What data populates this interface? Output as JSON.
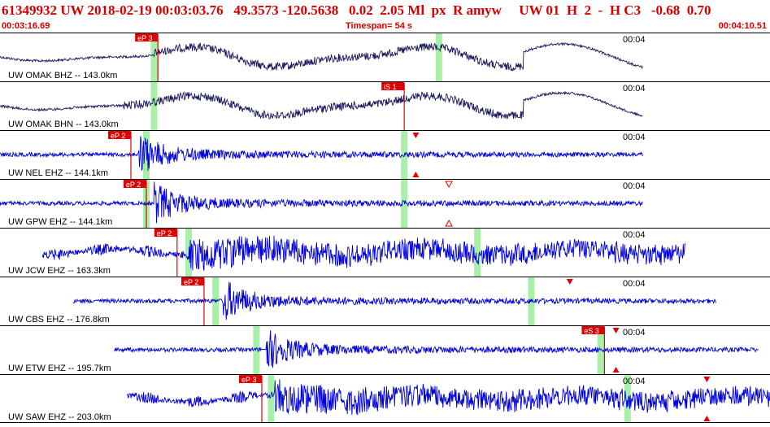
{
  "header": {
    "title": "61349932 UW 2018-02-19 00:03:03.76   49.3573 -120.5638   0.02  2.05 Ml  px  R amyw     UW 01  H  2  -  H C3   -0.68  0.70",
    "time_start": "00:03:16.69",
    "timespan": "Timespan=  54 s",
    "time_end": "00:04:10.51"
  },
  "colors": {
    "header_text": "#d40000",
    "waveform_vertical": "#0000dd",
    "waveform_horizontal": "#1a1a5a",
    "pick_marker": "#e00000",
    "window_highlight": "#a8f0a8",
    "divider": "#000000"
  },
  "traces": [
    {
      "label": "UW OMAK BHZ -- 143.0km",
      "time_label": "00:04",
      "color": "horizontal",
      "picks": [
        {
          "label": "eP 3",
          "t": 0.205
        }
      ],
      "windows": [
        0.2,
        0.57
      ],
      "wave": {
        "start": 0.0,
        "end": 0.835,
        "onset": 0.2,
        "style": "longperiod"
      }
    },
    {
      "label": "UW OMAK BHN -- 143.0km",
      "time_label": "00:04",
      "color": "horizontal",
      "picks": [
        {
          "label": "iS 1",
          "t": 0.525
        }
      ],
      "windows": [
        0.2
      ],
      "wave": {
        "start": 0.0,
        "end": 0.835,
        "onset": 0.16,
        "style": "longperiod"
      }
    },
    {
      "label": "UW NEL EHZ -- 144.1km",
      "time_label": "00:04",
      "color": "vertical",
      "picks": [
        {
          "label": "eP 2",
          "t": 0.17
        }
      ],
      "windows": [
        0.19,
        0.525
      ],
      "wave": {
        "start": 0.0,
        "end": 0.835,
        "onset": 0.18,
        "style": "quake"
      },
      "markers": [
        {
          "t": 0.54,
          "kind": "down"
        },
        {
          "t": 0.54,
          "kind": "up"
        }
      ]
    },
    {
      "label": "UW GPW EHZ -- 144.1km",
      "time_label": "00:04",
      "color": "vertical",
      "picks": [
        {
          "label": "eP 2",
          "t": 0.19
        }
      ],
      "windows": [
        0.19,
        0.525
      ],
      "wave": {
        "start": 0.0,
        "end": 0.835,
        "onset": 0.2,
        "style": "quake"
      },
      "markers": [
        {
          "t": 0.583,
          "kind": "down-open"
        },
        {
          "t": 0.583,
          "kind": "up-open"
        }
      ]
    },
    {
      "label": "UW JCW EHZ -- 163.3km",
      "time_label": "00:04",
      "color": "vertical",
      "picks": [
        {
          "label": "eP 2",
          "t": 0.23
        }
      ],
      "windows": [
        0.245,
        0.62
      ],
      "wave": {
        "start": 0.055,
        "end": 0.89,
        "onset": 0.245,
        "style": "noisy"
      }
    },
    {
      "label": "UW CBS EHZ -- 176.8km",
      "time_label": "00:04",
      "color": "vertical",
      "picks": [
        {
          "label": "eP 2",
          "t": 0.265
        }
      ],
      "windows": [
        0.28,
        0.69
      ],
      "wave": {
        "start": 0.095,
        "end": 0.93,
        "onset": 0.29,
        "style": "quake"
      },
      "markers": [
        {
          "t": 0.74,
          "kind": "down"
        }
      ]
    },
    {
      "label": "UW ETW EHZ -- 195.7km",
      "time_label": "00:04",
      "color": "vertical",
      "picks": [
        {
          "label": "eS 3",
          "t": 0.785
        }
      ],
      "windows": [
        0.333,
        0.78
      ],
      "wave": {
        "start": 0.148,
        "end": 0.985,
        "onset": 0.345,
        "style": "quake"
      },
      "markers": [
        {
          "t": 0.8,
          "kind": "down"
        },
        {
          "t": 0.8,
          "kind": "up"
        }
      ]
    },
    {
      "label": "UW SAW EHZ -- 203.0km",
      "time_label": "00:04",
      "color": "vertical",
      "picks": [
        {
          "label": "eP 3",
          "t": 0.34
        }
      ],
      "windows": [
        0.352,
        0.815
      ],
      "wave": {
        "start": 0.165,
        "end": 1.0,
        "onset": 0.355,
        "style": "noisy"
      },
      "markers": [
        {
          "t": 0.918,
          "kind": "down"
        },
        {
          "t": 0.918,
          "kind": "up"
        }
      ]
    }
  ]
}
